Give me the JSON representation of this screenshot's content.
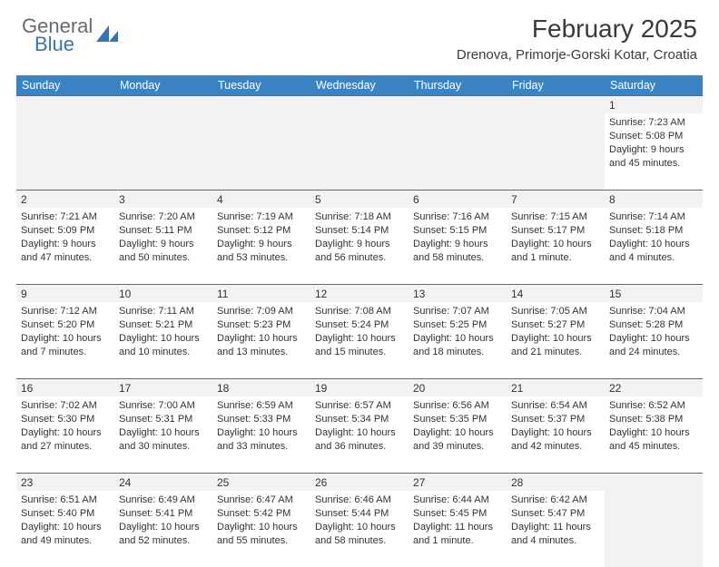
{
  "logo": {
    "general": "General",
    "blue": "Blue"
  },
  "title": "February 2025",
  "location": "Drenova, Primorje-Gorski Kotar, Croatia",
  "colors": {
    "header_bg": "#3b84c4",
    "header_text": "#ffffff",
    "border": "#2f76bb",
    "daynum_bg": "#f2f2f2",
    "text": "#333333",
    "logo_gray": "#6a6a6a",
    "logo_blue": "#2f76bb"
  },
  "day_names": [
    "Sunday",
    "Monday",
    "Tuesday",
    "Wednesday",
    "Thursday",
    "Friday",
    "Saturday"
  ],
  "weeks": [
    [
      null,
      null,
      null,
      null,
      null,
      null,
      {
        "n": "1",
        "sr": "7:23 AM",
        "ss": "5:08 PM",
        "dl": "9 hours and 45 minutes."
      }
    ],
    [
      {
        "n": "2",
        "sr": "7:21 AM",
        "ss": "5:09 PM",
        "dl": "9 hours and 47 minutes."
      },
      {
        "n": "3",
        "sr": "7:20 AM",
        "ss": "5:11 PM",
        "dl": "9 hours and 50 minutes."
      },
      {
        "n": "4",
        "sr": "7:19 AM",
        "ss": "5:12 PM",
        "dl": "9 hours and 53 minutes."
      },
      {
        "n": "5",
        "sr": "7:18 AM",
        "ss": "5:14 PM",
        "dl": "9 hours and 56 minutes."
      },
      {
        "n": "6",
        "sr": "7:16 AM",
        "ss": "5:15 PM",
        "dl": "9 hours and 58 minutes."
      },
      {
        "n": "7",
        "sr": "7:15 AM",
        "ss": "5:17 PM",
        "dl": "10 hours and 1 minute."
      },
      {
        "n": "8",
        "sr": "7:14 AM",
        "ss": "5:18 PM",
        "dl": "10 hours and 4 minutes."
      }
    ],
    [
      {
        "n": "9",
        "sr": "7:12 AM",
        "ss": "5:20 PM",
        "dl": "10 hours and 7 minutes."
      },
      {
        "n": "10",
        "sr": "7:11 AM",
        "ss": "5:21 PM",
        "dl": "10 hours and 10 minutes."
      },
      {
        "n": "11",
        "sr": "7:09 AM",
        "ss": "5:23 PM",
        "dl": "10 hours and 13 minutes."
      },
      {
        "n": "12",
        "sr": "7:08 AM",
        "ss": "5:24 PM",
        "dl": "10 hours and 15 minutes."
      },
      {
        "n": "13",
        "sr": "7:07 AM",
        "ss": "5:25 PM",
        "dl": "10 hours and 18 minutes."
      },
      {
        "n": "14",
        "sr": "7:05 AM",
        "ss": "5:27 PM",
        "dl": "10 hours and 21 minutes."
      },
      {
        "n": "15",
        "sr": "7:04 AM",
        "ss": "5:28 PM",
        "dl": "10 hours and 24 minutes."
      }
    ],
    [
      {
        "n": "16",
        "sr": "7:02 AM",
        "ss": "5:30 PM",
        "dl": "10 hours and 27 minutes."
      },
      {
        "n": "17",
        "sr": "7:00 AM",
        "ss": "5:31 PM",
        "dl": "10 hours and 30 minutes."
      },
      {
        "n": "18",
        "sr": "6:59 AM",
        "ss": "5:33 PM",
        "dl": "10 hours and 33 minutes."
      },
      {
        "n": "19",
        "sr": "6:57 AM",
        "ss": "5:34 PM",
        "dl": "10 hours and 36 minutes."
      },
      {
        "n": "20",
        "sr": "6:56 AM",
        "ss": "5:35 PM",
        "dl": "10 hours and 39 minutes."
      },
      {
        "n": "21",
        "sr": "6:54 AM",
        "ss": "5:37 PM",
        "dl": "10 hours and 42 minutes."
      },
      {
        "n": "22",
        "sr": "6:52 AM",
        "ss": "5:38 PM",
        "dl": "10 hours and 45 minutes."
      }
    ],
    [
      {
        "n": "23",
        "sr": "6:51 AM",
        "ss": "5:40 PM",
        "dl": "10 hours and 49 minutes."
      },
      {
        "n": "24",
        "sr": "6:49 AM",
        "ss": "5:41 PM",
        "dl": "10 hours and 52 minutes."
      },
      {
        "n": "25",
        "sr": "6:47 AM",
        "ss": "5:42 PM",
        "dl": "10 hours and 55 minutes."
      },
      {
        "n": "26",
        "sr": "6:46 AM",
        "ss": "5:44 PM",
        "dl": "10 hours and 58 minutes."
      },
      {
        "n": "27",
        "sr": "6:44 AM",
        "ss": "5:45 PM",
        "dl": "11 hours and 1 minute."
      },
      {
        "n": "28",
        "sr": "6:42 AM",
        "ss": "5:47 PM",
        "dl": "11 hours and 4 minutes."
      },
      null
    ]
  ],
  "labels": {
    "sunrise": "Sunrise:",
    "sunset": "Sunset:",
    "daylight": "Daylight:"
  }
}
